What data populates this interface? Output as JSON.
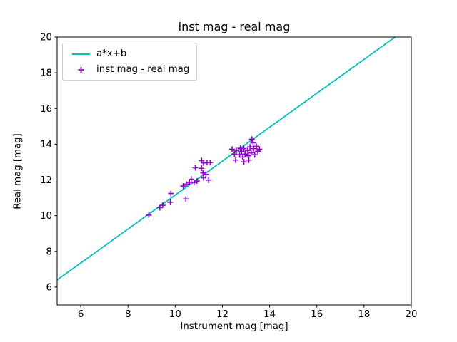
{
  "figure": {
    "background": "#ffffff",
    "axes_color": "#000000"
  },
  "chart_data": {
    "type": "scatter",
    "title": "inst mag - real mag",
    "xlabel": "Instrument mag [mag]",
    "ylabel": "Real mag [mag]",
    "xlim": [
      5,
      20
    ],
    "ylim": [
      5,
      20
    ],
    "xticks": [
      6,
      8,
      10,
      12,
      14,
      16,
      18,
      20
    ],
    "yticks": [
      6,
      8,
      10,
      12,
      14,
      16,
      18,
      20
    ],
    "grid": false,
    "legend_position": "upper left",
    "series": [
      {
        "name": "a*x+b",
        "type": "line",
        "color": "#00bfbf",
        "fit": {
          "a": 0.95,
          "b": 1.65
        }
      },
      {
        "name": "inst mag - real mag",
        "type": "scatter",
        "marker": "plus",
        "color": "#9400d3",
        "points": [
          [
            8.88,
            10.03
          ],
          [
            9.35,
            10.45
          ],
          [
            9.47,
            10.58
          ],
          [
            9.79,
            10.75
          ],
          [
            9.82,
            11.24
          ],
          [
            10.34,
            11.66
          ],
          [
            10.45,
            10.93
          ],
          [
            10.47,
            11.77
          ],
          [
            10.6,
            11.86
          ],
          [
            10.68,
            12.04
          ],
          [
            10.8,
            11.85
          ],
          [
            10.92,
            11.94
          ],
          [
            10.85,
            12.68
          ],
          [
            11.12,
            12.65
          ],
          [
            11.12,
            13.08
          ],
          [
            11.2,
            12.95
          ],
          [
            11.35,
            12.97
          ],
          [
            11.48,
            12.97
          ],
          [
            11.18,
            12.39
          ],
          [
            11.3,
            12.31
          ],
          [
            11.2,
            12.12
          ],
          [
            11.42,
            11.99
          ],
          [
            12.41,
            13.72
          ],
          [
            12.51,
            13.45
          ],
          [
            12.56,
            13.11
          ],
          [
            12.59,
            13.64
          ],
          [
            12.73,
            13.41
          ],
          [
            12.76,
            13.77
          ],
          [
            12.81,
            13.59
          ],
          [
            12.86,
            13.28
          ],
          [
            12.91,
            13.01
          ],
          [
            12.91,
            13.75
          ],
          [
            12.96,
            13.45
          ],
          [
            13.07,
            13.64
          ],
          [
            13.1,
            13.35
          ],
          [
            13.12,
            13.11
          ],
          [
            13.17,
            13.85
          ],
          [
            13.22,
            13.51
          ],
          [
            13.25,
            14.28
          ],
          [
            13.3,
            14.08
          ],
          [
            13.32,
            13.75
          ],
          [
            13.37,
            13.41
          ],
          [
            13.44,
            13.88
          ],
          [
            13.5,
            13.61
          ],
          [
            13.57,
            13.72
          ]
        ]
      }
    ]
  }
}
